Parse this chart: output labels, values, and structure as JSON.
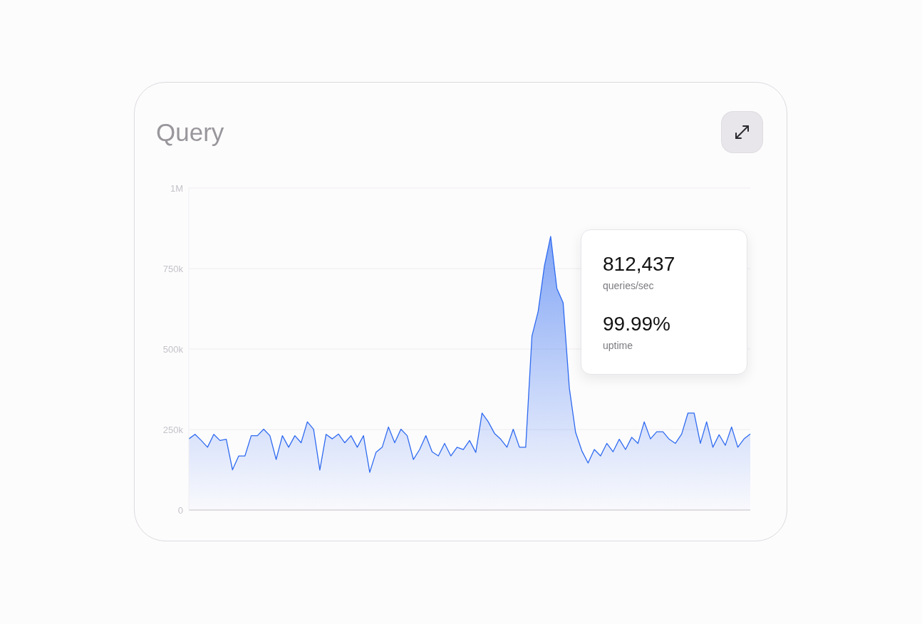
{
  "chart_data": {
    "type": "area",
    "title": "Query",
    "categories": [
      null,
      null,
      null,
      null,
      null,
      null,
      null,
      null,
      null,
      null,
      null,
      null,
      null,
      null,
      null,
      null,
      null,
      null,
      null,
      null,
      null,
      null,
      null,
      null,
      null,
      null,
      null,
      null,
      null,
      null,
      null,
      null,
      null,
      null,
      null,
      null,
      null,
      null,
      null,
      null,
      null,
      null,
      null,
      null,
      null,
      null,
      null,
      null,
      null,
      null,
      null,
      null,
      null,
      null,
      null,
      null,
      null,
      null,
      null,
      null,
      null,
      null,
      null,
      null,
      null,
      null,
      null,
      null,
      null,
      null,
      null,
      null,
      null,
      null,
      null,
      null,
      null,
      null,
      null,
      null,
      null,
      null,
      null,
      null,
      null,
      null,
      null,
      null,
      null,
      null,
      null
    ],
    "series": [
      {
        "color": "#2f6bf0",
        "values": [
          221000,
          235000,
          216000,
          195000,
          235000,
          216000,
          220000,
          125000,
          168000,
          168000,
          231000,
          231000,
          251000,
          231000,
          157000,
          231000,
          195000,
          231000,
          209000,
          274000,
          251000,
          124000,
          235000,
          221000,
          236000,
          209000,
          231000,
          195000,
          231000,
          117000,
          179000,
          195000,
          258000,
          209000,
          251000,
          231000,
          157000,
          188000,
          231000,
          181000,
          168000,
          207000,
          168000,
          195000,
          188000,
          216000,
          179000,
          301000,
          274000,
          238000,
          220000,
          195000,
          251000,
          195000,
          195000,
          540000,
          617000,
          758000,
          850000,
          688000,
          644000,
          378000,
          241000,
          184000,
          146000,
          188000,
          168000,
          207000,
          181000,
          220000,
          188000,
          226000,
          207000,
          274000,
          221000,
          243000,
          243000,
          220000,
          207000,
          236000,
          301000,
          301000,
          207000,
          274000,
          195000,
          234000,
          201000,
          258000,
          195000,
          221000,
          236000
        ]
      }
    ],
    "ylim": [
      0,
      1000000
    ],
    "yticks": [
      0,
      {
        "value": 250000,
        "label": "250k"
      },
      {
        "value": 500000,
        "label": "500k"
      },
      {
        "value": 750000,
        "label": "750k"
      },
      {
        "value": 1000000,
        "label": "1M"
      }
    ],
    "grid": "y",
    "annotations": [
      "812,437",
      "queries/sec",
      "99.99%",
      "uptime"
    ]
  }
}
